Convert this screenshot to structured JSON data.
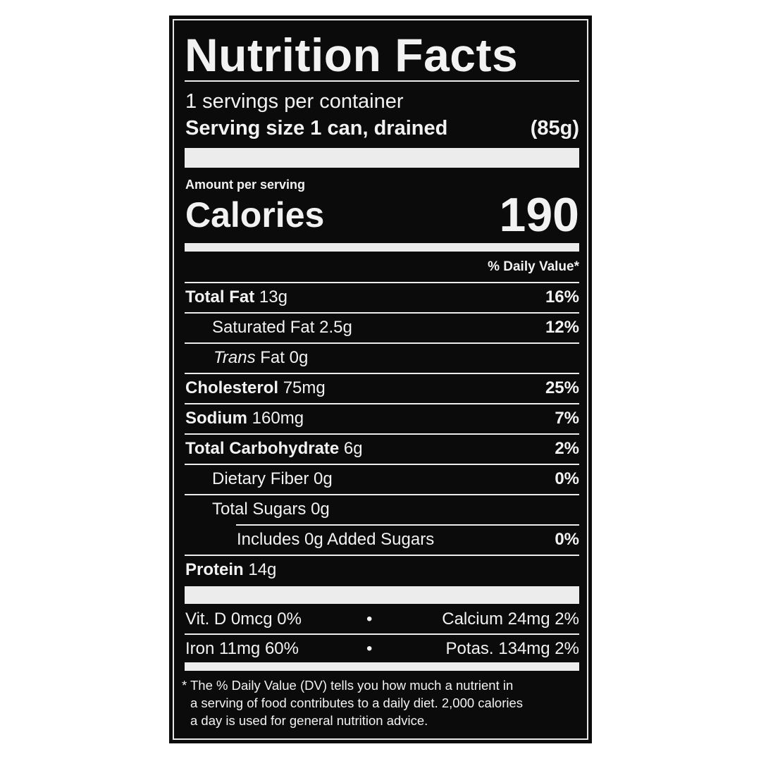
{
  "title": "Nutrition Facts",
  "servings_per_container": "1 servings per container",
  "serving_size_label": "Serving size 1 can, drained",
  "serving_size_weight": "(85g)",
  "amount_per_serving": "Amount per serving",
  "calories_label": "Calories",
  "calories_value": "190",
  "daily_value_header": "% Daily Value*",
  "nutrients": [
    {
      "name": "Total Fat",
      "amount": "13g",
      "dv": "16%"
    },
    {
      "name": "Saturated Fat",
      "amount": "2.5g",
      "dv": "12%"
    },
    {
      "name_italic": "Trans",
      "name": "Fat",
      "amount": "0g",
      "dv": ""
    },
    {
      "name": "Cholesterol",
      "amount": "75mg",
      "dv": "25%"
    },
    {
      "name": "Sodium",
      "amount": "160mg",
      "dv": "7%"
    },
    {
      "name": "Total Carbohydrate",
      "amount": "6g",
      "dv": "2%"
    },
    {
      "name": "Dietary Fiber",
      "amount": "0g",
      "dv": "0%"
    },
    {
      "name": "Total Sugars",
      "amount": "0g",
      "dv": ""
    },
    {
      "name": "Includes 0g Added Sugars",
      "amount": "",
      "dv": "0%"
    },
    {
      "name": "Protein",
      "amount": "14g",
      "dv": ""
    }
  ],
  "vitamins": [
    {
      "left": "Vit. D 0mcg 0%",
      "right": "Calcium 24mg 2%"
    },
    {
      "left": "Iron 11mg 60%",
      "right": "Potas. 134mg 2%"
    }
  ],
  "bullet": "•",
  "footnote": [
    "* The % Daily Value (DV) tells you how much a nutrient in",
    "a serving of food contributes to a daily diet. 2,000 calories",
    "a day is used for general nutrition advice."
  ]
}
